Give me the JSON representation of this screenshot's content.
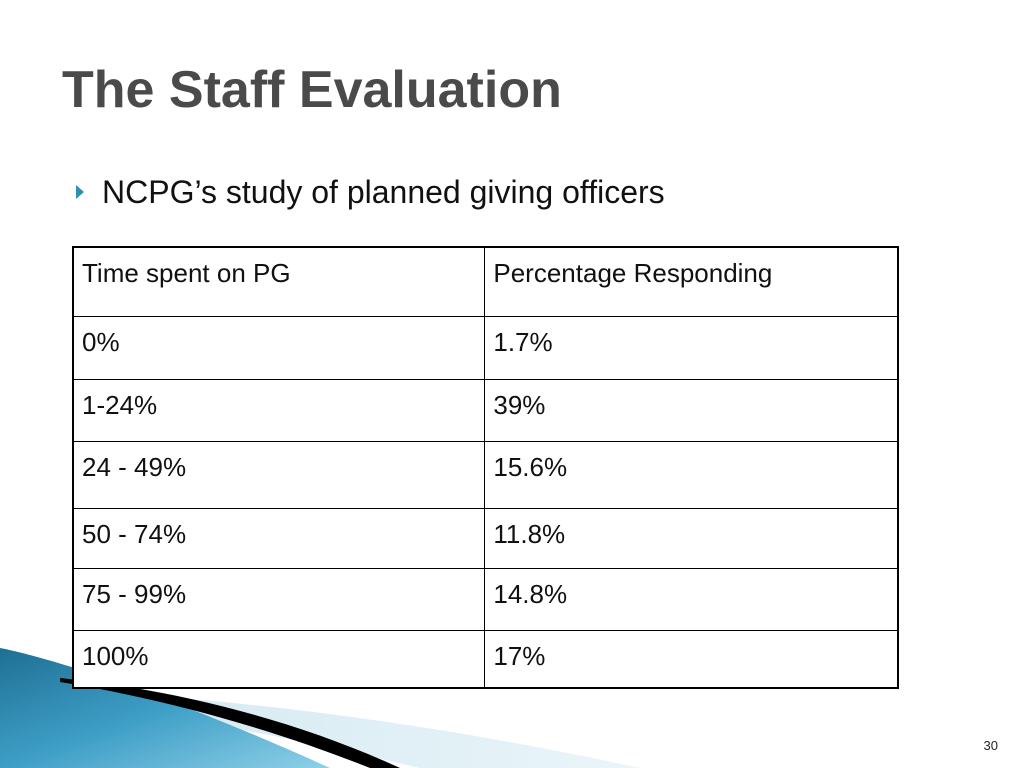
{
  "slide": {
    "title": "The Staff Evaluation",
    "bullet": {
      "icon": "triangle-bullet-icon",
      "text": "NCPG’s study of planned giving officers"
    },
    "table": {
      "headers": [
        "Time spent on PG",
        "Percentage Responding"
      ],
      "rows": [
        [
          "0%",
          "1.7%"
        ],
        [
          "1-24%",
          "39%"
        ],
        [
          "24 - 49%",
          "15.6%"
        ],
        [
          "50 - 74%",
          "11.8%"
        ],
        [
          "75 - 99%",
          "14.8%"
        ],
        [
          "100%",
          "17%"
        ]
      ]
    },
    "page_number": "30",
    "colors": {
      "title": "#4a4a4a",
      "bullet": "#2e8fb5",
      "swoosh_dark": "#1f6f94",
      "swoosh_light": "#8fd0e8",
      "swoosh_pale": "#d9ecf3"
    }
  }
}
